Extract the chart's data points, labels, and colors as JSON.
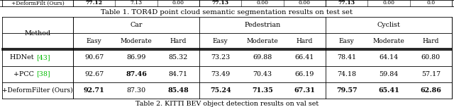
{
  "title": "Table 1. TOR4D point cloud semantic segmentation results on test set",
  "subtitle": "Table 2. KITTI BEV object detection results on val set",
  "col_groups": [
    "Car",
    "Pedestrian",
    "Cyclist"
  ],
  "sub_cols": [
    "Easy",
    "Moderate",
    "Hard"
  ],
  "methods": [
    "HDNet [43]",
    "+PCC [38]",
    "+DeformFilter (Ours)"
  ],
  "data": [
    [
      90.67,
      86.99,
      85.32,
      73.23,
      69.88,
      66.41,
      78.41,
      64.14,
      60.8
    ],
    [
      92.67,
      87.46,
      84.71,
      73.49,
      70.43,
      66.19,
      74.18,
      59.84,
      57.17
    ],
    [
      92.71,
      87.3,
      85.48,
      75.24,
      71.35,
      67.31,
      79.57,
      65.41,
      62.86
    ]
  ],
  "bold": [
    [
      false,
      false,
      false,
      false,
      false,
      false,
      false,
      false,
      false
    ],
    [
      false,
      true,
      false,
      false,
      false,
      false,
      false,
      false,
      false
    ],
    [
      true,
      false,
      true,
      true,
      true,
      true,
      true,
      true,
      true
    ]
  ],
  "ref_color": "#00bb00",
  "bg_color": "#ffffff",
  "top_strip_text": "+DeformFilt (Ours)",
  "top_strip_values": [
    "77.12",
    "7.13",
    "0.00",
    "77.13",
    "0.00",
    "0.00",
    "77.13",
    "0.00",
    "0.0"
  ],
  "top_strip_bold": [
    true,
    false,
    false,
    true,
    false,
    false,
    true,
    false,
    false
  ],
  "title_fontsize": 7.2,
  "subtitle_fontsize": 6.8,
  "header_fontsize": 6.8,
  "data_fontsize": 6.8,
  "method_fontsize": 6.5
}
